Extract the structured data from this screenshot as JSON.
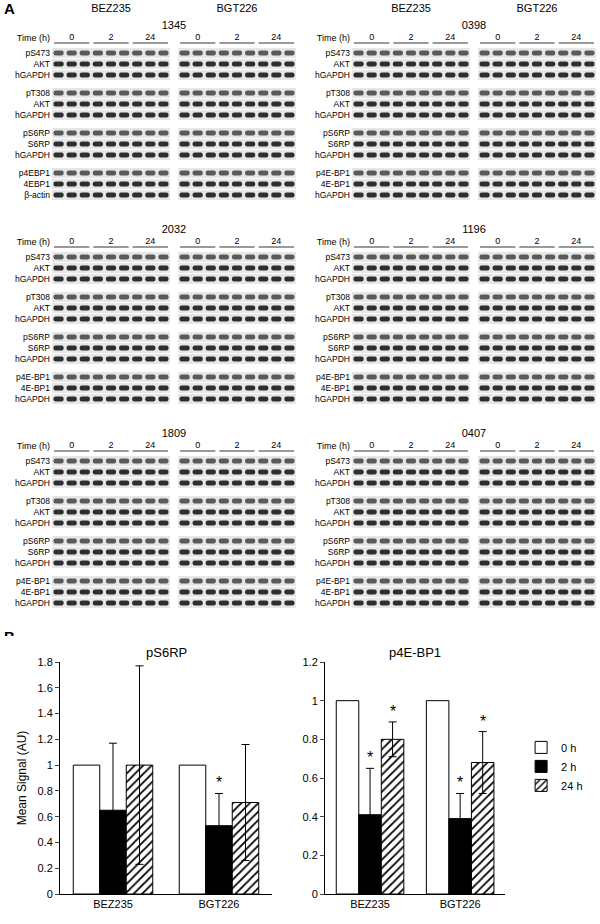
{
  "panel_a": {
    "label": "A",
    "drugs": [
      "BEZ235",
      "BGT226"
    ],
    "time_label": "Time (h)",
    "times": [
      "0",
      "2",
      "24"
    ],
    "cell_lines": [
      {
        "name": "1345",
        "rows": [
          [
            "pS473",
            "AKT",
            "hGAPDH"
          ],
          [
            "pT308",
            "AKT",
            "hGAPDH"
          ],
          [
            "pS6RP",
            "S6RP",
            "hGAPDH"
          ],
          [
            "p4EBP1",
            "4EBP1",
            "β-actin"
          ]
        ]
      },
      {
        "name": "0398",
        "rows": [
          [
            "pS473",
            "AKT",
            "hGAPDH"
          ],
          [
            "pT308",
            "AKT",
            "hGAPDH"
          ],
          [
            "pS6RP",
            "S6RP",
            "hGAPDH"
          ],
          [
            "p4E-BP1",
            "4E-BP1",
            "hGAPDH"
          ]
        ]
      },
      {
        "name": "2032",
        "rows": [
          [
            "pS473",
            "AKT",
            "hGAPDH"
          ],
          [
            "pT308",
            "AKT",
            "hGAPDH"
          ],
          [
            "pS6RP",
            "S6RP",
            "hGAPDH"
          ],
          [
            "p4E-BP1",
            "4E-BP1",
            "hGAPDH"
          ]
        ]
      },
      {
        "name": "1196",
        "rows": [
          [
            "pS473",
            "AKT",
            "hGAPDH"
          ],
          [
            "pT308",
            "AKT",
            "hGAPDH"
          ],
          [
            "pS6RP",
            "S6RP",
            "hGAPDH"
          ],
          [
            "p4E-BP1",
            "4E-BP1",
            "hGAPDH"
          ]
        ]
      },
      {
        "name": "1809",
        "rows": [
          [
            "pS473",
            "AKT",
            "hGAPDH"
          ],
          [
            "pT308",
            "AKT",
            "hGAPDH"
          ],
          [
            "pS6RP",
            "S6RP",
            "hGAPDH"
          ],
          [
            "p4E-BP1",
            "4E-BP1",
            "hGAPDH"
          ]
        ]
      },
      {
        "name": "0407",
        "rows": [
          [
            "pS473",
            "AKT",
            "hGAPDH"
          ],
          [
            "pT308",
            "AKT",
            "hGAPDH"
          ],
          [
            "pS6RP",
            "S6RP",
            "hGAPDH"
          ],
          [
            "p4E-BP1",
            "4E-BP1",
            "hGAPDH"
          ]
        ]
      }
    ]
  },
  "panel_b_label": "B",
  "chart_data": [
    {
      "type": "bar",
      "title": "pS6RP",
      "y_label": "Mean Signal (AU)",
      "categories": [
        "BEZ235",
        "BGT226"
      ],
      "series": [
        {
          "name": "0 h",
          "color": "#ffffff",
          "values": [
            1,
            1
          ]
        },
        {
          "name": "2 h",
          "color": "#000000",
          "values": [
            0.65,
            0.53
          ],
          "errors": [
            0.52,
            0.25
          ]
        },
        {
          "name": "24 h",
          "color": "#ffffff",
          "marker": "hatched",
          "values": [
            1.0,
            0.71
          ],
          "errors": [
            0.77,
            0.45
          ]
        }
      ],
      "annotations": [
        {
          "category": "BGT226",
          "series": "2 h",
          "text": "*"
        }
      ],
      "ylim": [
        0,
        1.8
      ],
      "yticks": [
        0,
        0.2,
        0.4,
        0.6,
        0.8,
        1,
        1.2,
        1.4,
        1.6,
        1.8
      ],
      "grid": false
    },
    {
      "type": "bar",
      "title": "p4E-BP1",
      "categories": [
        "BEZ235",
        "BGT226"
      ],
      "series": [
        {
          "name": "0 h",
          "color": "#ffffff",
          "values": [
            1,
            1
          ]
        },
        {
          "name": "2 h",
          "color": "#000000",
          "values": [
            0.41,
            0.39
          ],
          "errors": [
            0.24,
            0.13
          ]
        },
        {
          "name": "24 h",
          "color": "#ffffff",
          "marker": "hatched",
          "values": [
            0.8,
            0.68
          ],
          "errors": [
            0.09,
            0.16
          ]
        }
      ],
      "annotations": [
        {
          "category": "BEZ235",
          "series": "2 h",
          "text": "*"
        },
        {
          "category": "BEZ235",
          "series": "24 h",
          "text": "*"
        },
        {
          "category": "BGT226",
          "series": "2 h",
          "text": "*"
        },
        {
          "category": "BGT226",
          "series": "24 h",
          "text": "*"
        }
      ],
      "ylim": [
        0,
        1.2
      ],
      "yticks": [
        0,
        0.2,
        0.4,
        0.6,
        0.8,
        1,
        1.2
      ],
      "grid": false,
      "legend": "right"
    }
  ]
}
